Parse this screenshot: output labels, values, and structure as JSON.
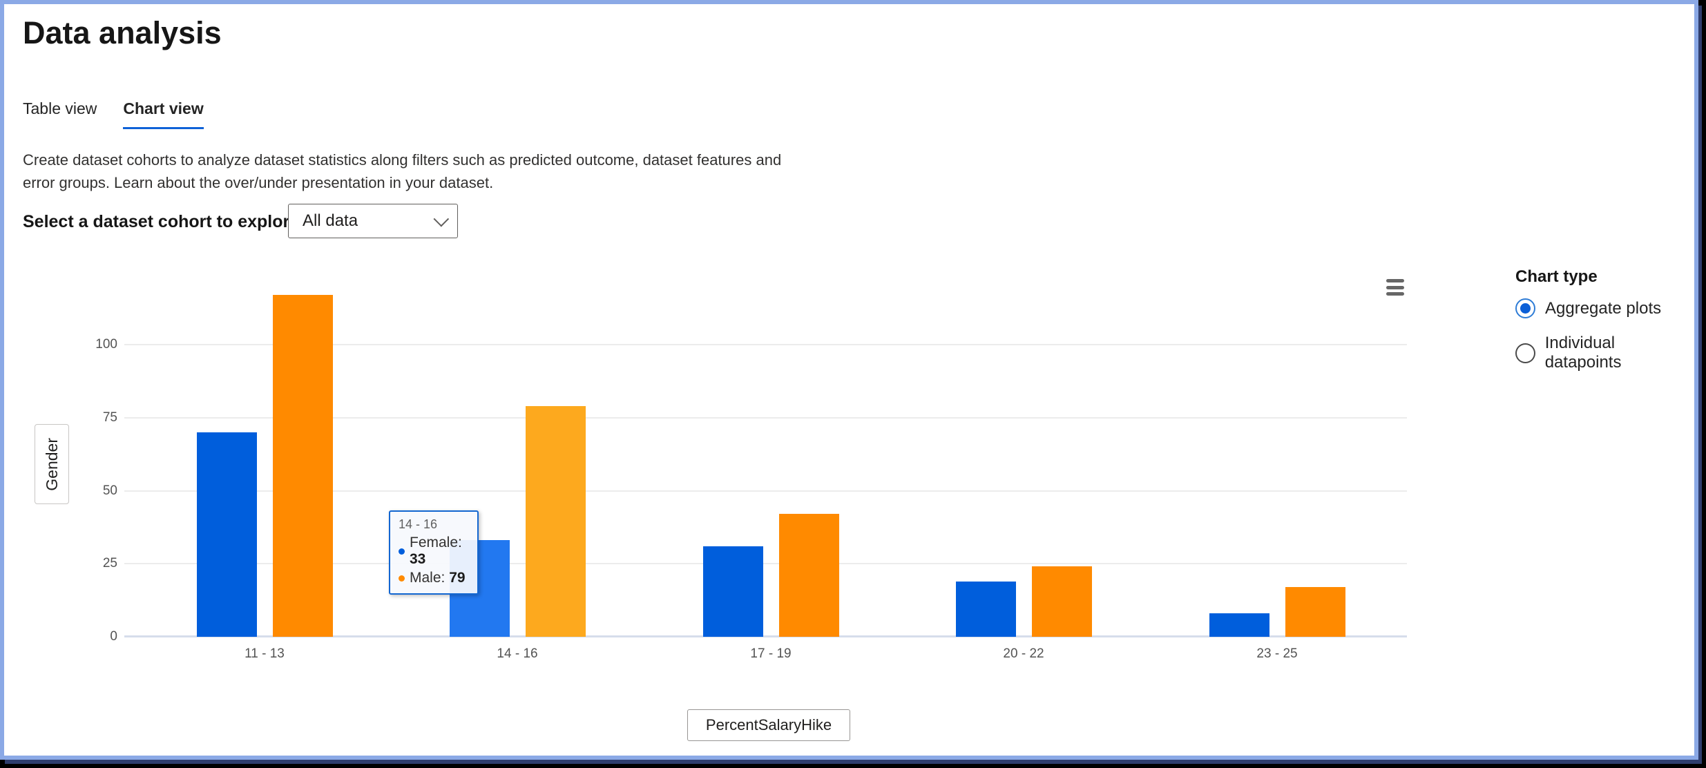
{
  "page": {
    "title": "Data analysis"
  },
  "tabs": [
    {
      "label": "Table view",
      "active": false
    },
    {
      "label": "Chart view",
      "active": true
    }
  ],
  "description": "Create dataset cohorts to analyze dataset statistics along filters such as predicted outcome, dataset features and error groups. Learn about the over/under presentation in your dataset.",
  "cohort_selector": {
    "label": "Select a dataset cohort to explore",
    "value": "All data"
  },
  "chart_type_panel": {
    "title": "Chart type",
    "options": [
      {
        "label": "Aggregate plots",
        "selected": true
      },
      {
        "label": "Individual datapoints",
        "selected": false
      }
    ]
  },
  "chart_data": {
    "type": "bar",
    "title": "",
    "categories": [
      "11 - 13",
      "14 - 16",
      "17 - 19",
      "20 - 22",
      "23 - 25"
    ],
    "series": [
      {
        "name": "Female",
        "color": "#005EDC",
        "hover_color": "#2278F0",
        "values": [
          70,
          33,
          31,
          19,
          8
        ]
      },
      {
        "name": "Male",
        "color": "#FF8A00",
        "hover_color": "#FDA91E",
        "values": [
          117,
          79,
          42,
          24,
          17
        ]
      }
    ],
    "xlabel": "PercentSalaryHike",
    "ylabel": "Gender",
    "yticks": [
      0,
      25,
      50,
      75,
      100
    ],
    "ylim": [
      0,
      125
    ],
    "grid": true,
    "legend": "none",
    "hovered_category_index": 1,
    "tooltip": {
      "header": "14 - 16",
      "rows": [
        {
          "label": "Female",
          "value": "33",
          "color": "#005EDC"
        },
        {
          "label": "Male",
          "value": "79",
          "color": "#FF8A00"
        }
      ]
    }
  }
}
